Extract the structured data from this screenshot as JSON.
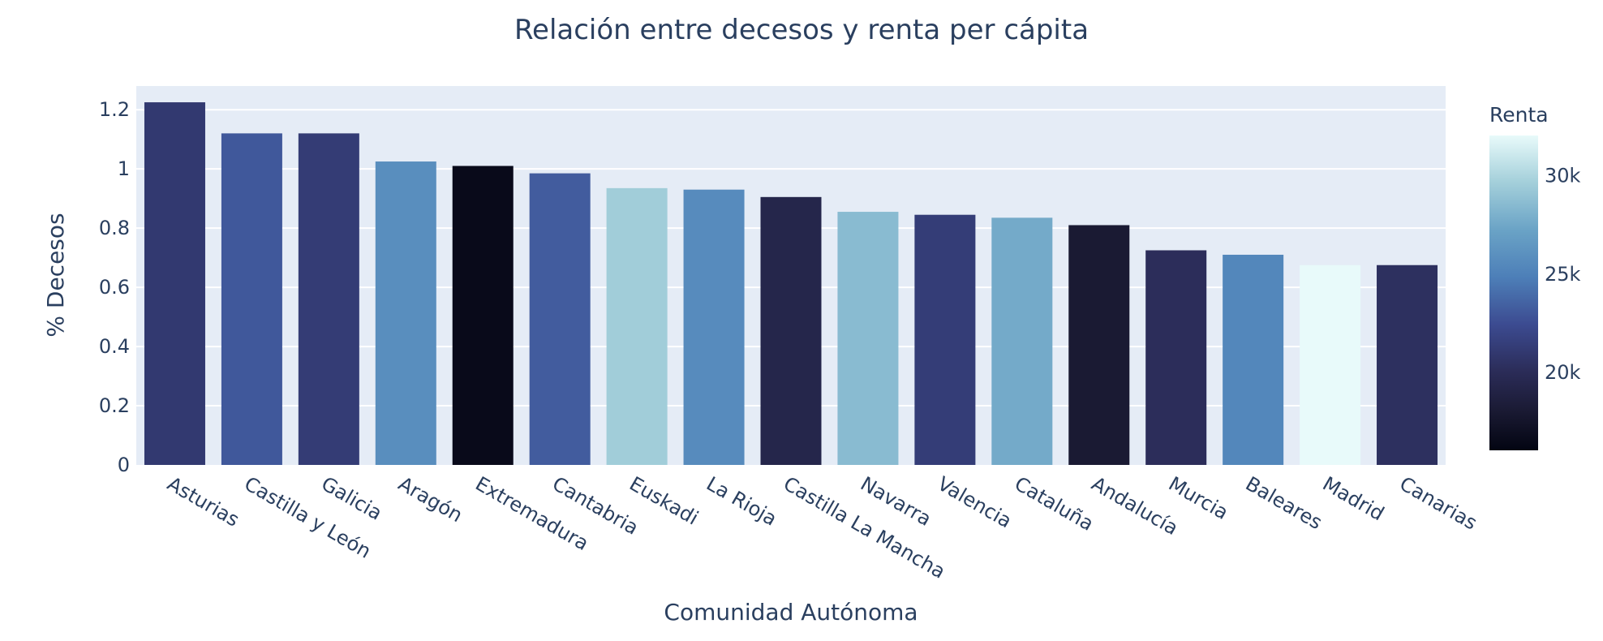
{
  "chart_data": {
    "type": "bar",
    "title": "Relación entre decesos y renta per cápita",
    "xlabel": "Comunidad Autónoma",
    "ylabel": "% Decesos",
    "ylim": [
      0,
      1.28
    ],
    "yticks": [
      0,
      0.2,
      0.4,
      0.6,
      0.8,
      1,
      1.2
    ],
    "ytick_labels": [
      "0",
      "0.2",
      "0.4",
      "0.6",
      "0.8",
      "1",
      "1.2"
    ],
    "categories": [
      "Asturias",
      "Castilla y León",
      "Galicia",
      "Aragón",
      "Extremadura",
      "Cantabria",
      "Euskadi",
      "La Rioja",
      "Castilla La Mancha",
      "Navarra",
      "Valencia",
      "Cataluña",
      "Andalucía",
      "Murcia",
      "Baleares",
      "Madrid",
      "Canarias"
    ],
    "values": [
      1.225,
      1.12,
      1.12,
      1.025,
      1.01,
      0.985,
      0.935,
      0.93,
      0.905,
      0.855,
      0.845,
      0.835,
      0.81,
      0.725,
      0.71,
      0.675,
      0.675
    ],
    "color_values": [
      21000,
      23000,
      21200,
      25800,
      16500,
      23200,
      29500,
      25600,
      19300,
      28500,
      21300,
      27600,
      18000,
      20100,
      25300,
      32000,
      20300
    ],
    "colorbar": {
      "title": "Renta",
      "range": [
        16000,
        32000
      ],
      "ticks": [
        20000,
        25000,
        30000
      ],
      "tick_labels": [
        "20k",
        "25k",
        "30k"
      ],
      "colorscale": [
        [
          0.0,
          "#030512"
        ],
        [
          0.125,
          "#1a1a33"
        ],
        [
          0.25,
          "#2b2c58"
        ],
        [
          0.4,
          "#3c4b91"
        ],
        [
          0.55,
          "#4d7fb8"
        ],
        [
          0.7,
          "#6aa3c6"
        ],
        [
          0.85,
          "#a3cfda"
        ],
        [
          1.0,
          "#e8fafa"
        ]
      ]
    },
    "plot_bgcolor": "#e5ecf6",
    "grid_color": "#ffffff"
  }
}
